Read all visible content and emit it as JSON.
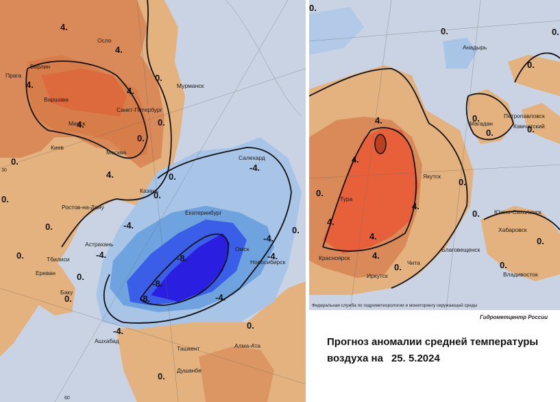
{
  "left_map": {
    "cities": [
      "Осло",
      "Берлин",
      "Прага",
      "Варшава",
      "Санкт-Петербург",
      "Минск",
      "Киев",
      "Москва",
      "Мурманск",
      "Казань",
      "Салехард",
      "Екатеринбург",
      "Ростов-на-Дону",
      "Астрахань",
      "Тбилиси",
      "Ереван",
      "Баку",
      "Омск",
      "Новосибирск",
      "Ашхабад",
      "Ташкент",
      "Алма-Ата",
      "Душанбе"
    ],
    "isolines": [
      "4.",
      "4.",
      "4.",
      "0.",
      "4.",
      "4.",
      "0.",
      "0.",
      "4.",
      "0.",
      "-4.",
      "0.",
      "-4.",
      "-4.",
      "0.",
      "-8.",
      "-8.",
      "-8.",
      "-4.",
      "-4.",
      "-4.",
      "0.",
      "0.",
      "0.",
      "0.",
      "0.",
      "-4.",
      "0.",
      "0.",
      "0."
    ],
    "grid_labels": [
      "60",
      "30"
    ]
  },
  "right_map": {
    "cities": [
      "Анадырь",
      "Петропавловск",
      "Магадан",
      "Камчатский",
      "Якутск",
      "Тура",
      "Южно-Сахалинск",
      "Хабаровск",
      "Благовещенск",
      "Красноярск",
      "Чита",
      "Иркутск",
      "Владивосток"
    ],
    "isolines": [
      "0.",
      "0.",
      "4.",
      "0.",
      "0.",
      "0.",
      "0.",
      "4.",
      "4.",
      "0.",
      "4.",
      "4.",
      "4.",
      "0.",
      "0.",
      "0.",
      "0.",
      "0.",
      "0."
    ]
  },
  "caption": {
    "agency": "Федеральная служба по гидрометеорологии и мониторингу окружающей среды",
    "center": "Гидрометцентр России",
    "title_line1": "Прогноз аномалии средней температуры",
    "title_line2": "воздуха на",
    "date": "25. 5.2024"
  },
  "colors": {
    "warm_strong": "#e8603a",
    "warm": "#d98a58",
    "warm_light": "#e3b27e",
    "neutral": "#c9d3e3",
    "cool": "#a8c5e8",
    "cold": "#6fa3df",
    "cold_strong": "#3a5ee8",
    "cold_core": "#2a1ee0"
  }
}
